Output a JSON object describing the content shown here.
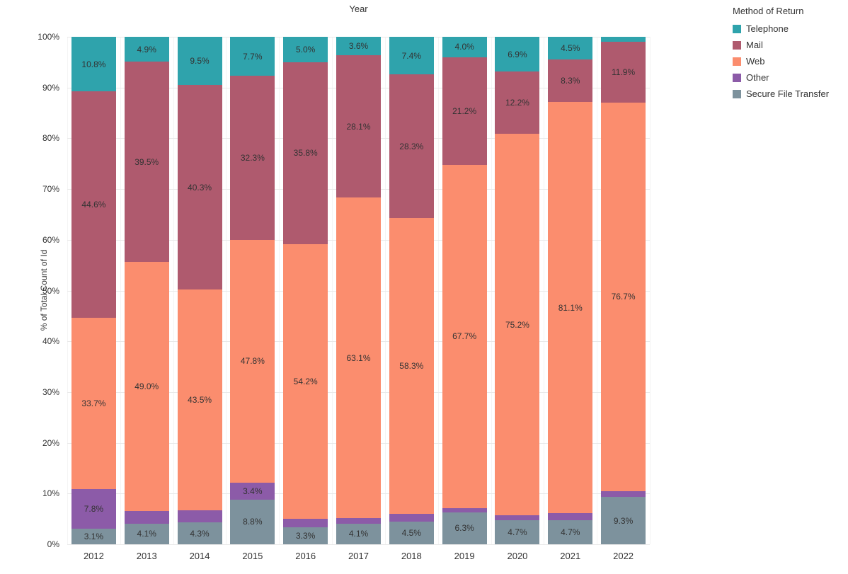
{
  "chart_data": {
    "type": "bar",
    "stacked": true,
    "percent": true,
    "title": "Year",
    "ylabel": "% of Total Count of Id",
    "ylim": [
      0,
      100
    ],
    "grid": true,
    "legend_position": "top-right",
    "legend_title": "Method of Return",
    "y_ticks": [
      "0%",
      "10%",
      "20%",
      "30%",
      "40%",
      "50%",
      "60%",
      "70%",
      "80%",
      "90%",
      "100%"
    ],
    "categories": [
      "2012",
      "2013",
      "2014",
      "2015",
      "2016",
      "2017",
      "2018",
      "2019",
      "2020",
      "2021",
      "2022"
    ],
    "series": [
      {
        "name": "Telephone",
        "color": "#2FA3AC",
        "values": [
          10.8,
          4.9,
          9.5,
          7.7,
          5.0,
          3.6,
          7.4,
          4.0,
          6.9,
          4.5,
          1.0
        ]
      },
      {
        "name": "Mail",
        "color": "#AF5A6E",
        "values": [
          44.6,
          39.5,
          40.3,
          32.3,
          35.8,
          28.1,
          28.3,
          21.2,
          12.2,
          8.3,
          11.9
        ]
      },
      {
        "name": "Web",
        "color": "#FB8D6E",
        "values": [
          33.7,
          49.0,
          43.5,
          47.8,
          54.2,
          63.1,
          58.3,
          67.7,
          75.2,
          81.1,
          76.7
        ]
      },
      {
        "name": "Other",
        "color": "#8C5BA8",
        "values": [
          7.8,
          2.5,
          2.4,
          3.4,
          1.7,
          1.1,
          1.5,
          0.8,
          1.0,
          1.4,
          1.1
        ]
      },
      {
        "name": "Secure File Transfer",
        "color": "#7D929D",
        "values": [
          3.1,
          4.1,
          4.3,
          8.8,
          3.3,
          4.1,
          4.5,
          6.3,
          4.7,
          4.7,
          9.3
        ]
      }
    ],
    "label_min_value": 3.0,
    "label_format": "percent_one_decimal"
  }
}
